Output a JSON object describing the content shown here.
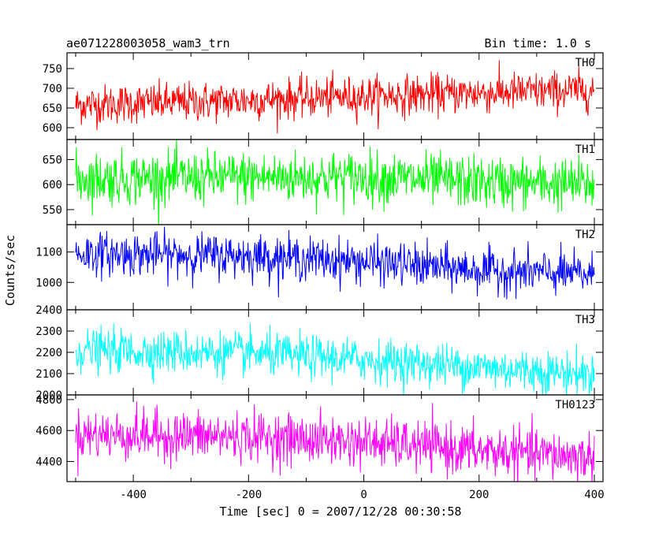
{
  "chart_data": {
    "type": "line",
    "title_left": "ae071228003058_wam3_trn",
    "title_right": "Bin time: 1.0 s",
    "xlabel": "Time [sec] 0 = 2007/12/28 00:30:58",
    "ylabel": "Counts/sec",
    "xlim": [
      -515,
      415
    ],
    "x_ticks": [
      -400,
      -200,
      0,
      200,
      400
    ],
    "x_range": [
      -500,
      400
    ],
    "bin_time": 1.0,
    "panels": [
      {
        "name": "TH0",
        "color": "#ff0000",
        "ylim": [
          570,
          790
        ],
        "y_ticks": [
          600,
          650,
          700,
          750
        ],
        "trend": [
          [
            -500,
            658
          ],
          [
            -300,
            665
          ],
          [
            -100,
            675
          ],
          [
            0,
            680
          ],
          [
            200,
            688
          ],
          [
            400,
            695
          ]
        ],
        "noise_sd": 25
      },
      {
        "name": "TH1",
        "color": "#00ff00",
        "ylim": [
          520,
          690
        ],
        "y_ticks": [
          550,
          600,
          650
        ],
        "trend": [
          [
            -500,
            612
          ],
          [
            -200,
            614
          ],
          [
            0,
            615
          ],
          [
            200,
            605
          ],
          [
            400,
            600
          ]
        ],
        "noise_sd": 26
      },
      {
        "name": "TH2",
        "color": "#0000ff",
        "ylim": [
          910,
          1190
        ],
        "y_ticks": [
          1000,
          1100
        ],
        "trend": [
          [
            -500,
            1095
          ],
          [
            -200,
            1088
          ],
          [
            0,
            1068
          ],
          [
            200,
            1040
          ],
          [
            400,
            1025
          ]
        ],
        "noise_sd": 35
      },
      {
        "name": "TH3",
        "color": "#00ffff",
        "ylim": [
          2000,
          2400
        ],
        "y_ticks": [
          2000,
          2100,
          2200,
          2300,
          2400
        ],
        "trend": [
          [
            -500,
            2210
          ],
          [
            -200,
            2195
          ],
          [
            0,
            2165
          ],
          [
            200,
            2130
          ],
          [
            400,
            2095
          ]
        ],
        "noise_sd": 50
      },
      {
        "name": "TH0123",
        "color": "#ff00ff",
        "ylim": [
          4270,
          4830
        ],
        "y_ticks": [
          4400,
          4600,
          4800
        ],
        "trend": [
          [
            -500,
            4575
          ],
          [
            -200,
            4560
          ],
          [
            0,
            4525
          ],
          [
            200,
            4470
          ],
          [
            400,
            4425
          ]
        ],
        "noise_sd": 80
      }
    ]
  }
}
